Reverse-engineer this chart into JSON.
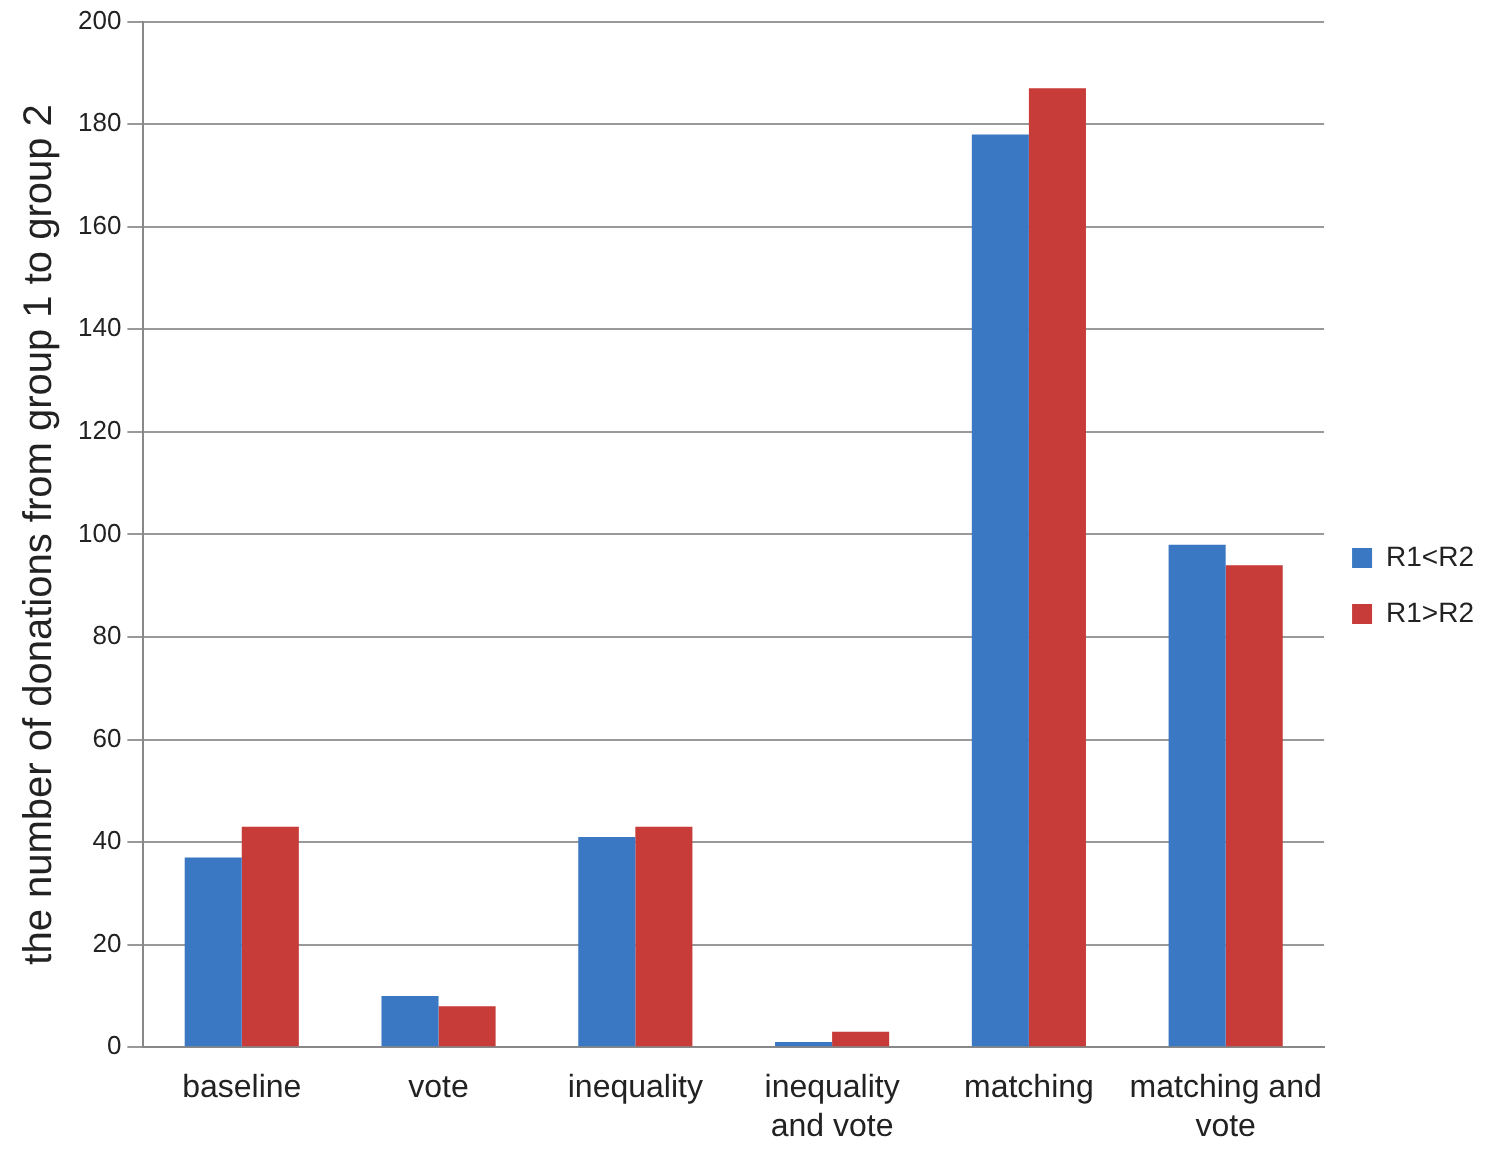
{
  "chart_data": {
    "type": "bar",
    "ylabel": "the number of donations from group 1 to group 2",
    "categories": [
      "baseline",
      "vote",
      "inequality",
      "inequality and vote",
      "matching",
      "matching and vote"
    ],
    "series": [
      {
        "name": "R1<R2",
        "color": "#3a78c3",
        "values": [
          37,
          10,
          41,
          1,
          178,
          98
        ]
      },
      {
        "name": "R1>R2",
        "color": "#c73b38",
        "values": [
          43,
          8,
          43,
          3,
          187,
          94
        ]
      }
    ],
    "ylim": [
      0,
      200
    ],
    "yticks": [
      0,
      20,
      40,
      60,
      80,
      100,
      120,
      140,
      160,
      180,
      200
    ],
    "grid": "y",
    "legend": "right"
  }
}
